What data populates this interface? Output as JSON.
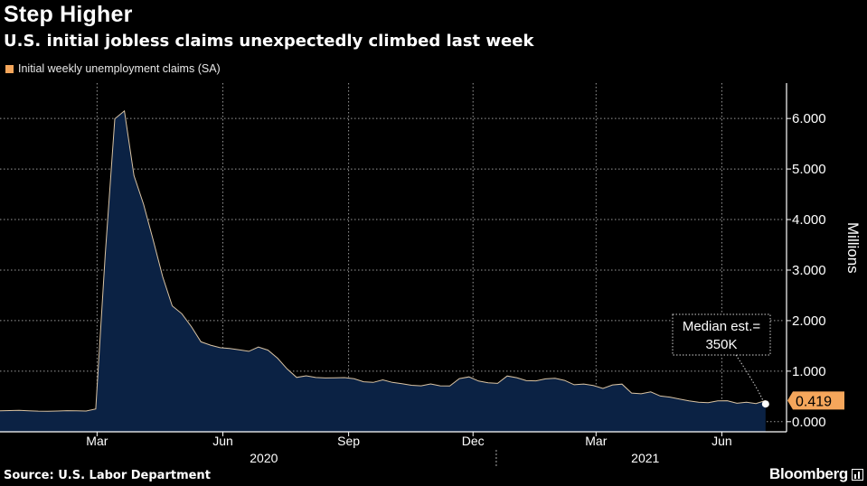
{
  "header": {
    "title": "Step Higher",
    "subtitle": "U.S. initial jobless claims unexpectedly climbed last week"
  },
  "legend": {
    "label": "Initial weekly unemployment claims (SA)",
    "color": "#f5a65b"
  },
  "annotation": {
    "line1": "Median est.=",
    "line2": "350K"
  },
  "last_value_label": "0.419",
  "footer": {
    "source": "Source: U.S. Labor Department",
    "brand": "Bloomberg"
  },
  "colors": {
    "background": "#000000",
    "area_fill": "#0b2244",
    "line": "#d9c3a3",
    "accent": "#f5a65b"
  },
  "chart_data": {
    "type": "area",
    "title": "Step Higher",
    "subtitle": "U.S. initial jobless claims unexpectedly climbed last week",
    "ylabel": "Millions",
    "ylim": [
      -0.2,
      6.7
    ],
    "yticks": [
      0,
      1,
      2,
      3,
      4,
      5,
      6
    ],
    "ytick_labels": [
      "0.000",
      "1.000",
      "2.000",
      "3.000",
      "4.000",
      "5.000",
      "6.000"
    ],
    "xlim": [
      "2020-01-04",
      "2021-07-31"
    ],
    "xticks": [
      {
        "date": "2020-03-15",
        "label": "Mar"
      },
      {
        "date": "2020-06-15",
        "label": "Jun"
      },
      {
        "date": "2020-09-15",
        "label": "Sep"
      },
      {
        "date": "2020-12-15",
        "label": "Dec"
      },
      {
        "date": "2021-03-15",
        "label": "Mar"
      },
      {
        "date": "2021-06-15",
        "label": "Jun"
      }
    ],
    "year_labels": [
      {
        "date": "2020-07-15",
        "label": "2020"
      },
      {
        "date": "2021-04-20",
        "label": "2021"
      }
    ],
    "year_divider": "2021-01-01",
    "grid": true,
    "legend_position": "top-left",
    "series": [
      {
        "name": "Initial weekly unemployment claims (SA)",
        "x": [
          "2020-01-04",
          "2020-01-11",
          "2020-01-18",
          "2020-01-25",
          "2020-02-01",
          "2020-02-08",
          "2020-02-15",
          "2020-02-22",
          "2020-02-29",
          "2020-03-07",
          "2020-03-14",
          "2020-03-21",
          "2020-03-28",
          "2020-04-04",
          "2020-04-11",
          "2020-04-18",
          "2020-04-25",
          "2020-05-02",
          "2020-05-09",
          "2020-05-16",
          "2020-05-23",
          "2020-05-30",
          "2020-06-06",
          "2020-06-13",
          "2020-06-20",
          "2020-06-27",
          "2020-07-04",
          "2020-07-11",
          "2020-07-18",
          "2020-07-25",
          "2020-08-01",
          "2020-08-08",
          "2020-08-15",
          "2020-08-22",
          "2020-08-29",
          "2020-09-05",
          "2020-09-12",
          "2020-09-19",
          "2020-09-26",
          "2020-10-03",
          "2020-10-10",
          "2020-10-17",
          "2020-10-24",
          "2020-10-31",
          "2020-11-07",
          "2020-11-14",
          "2020-11-21",
          "2020-11-28",
          "2020-12-05",
          "2020-12-12",
          "2020-12-19",
          "2020-12-26",
          "2021-01-02",
          "2021-01-09",
          "2021-01-16",
          "2021-01-23",
          "2021-01-30",
          "2021-02-06",
          "2021-02-13",
          "2021-02-20",
          "2021-02-27",
          "2021-03-06",
          "2021-03-13",
          "2021-03-20",
          "2021-03-27",
          "2021-04-03",
          "2021-04-10",
          "2021-04-17",
          "2021-04-24",
          "2021-05-01",
          "2021-05-08",
          "2021-05-15",
          "2021-05-22",
          "2021-05-29",
          "2021-06-05",
          "2021-06-12",
          "2021-06-19",
          "2021-06-26",
          "2021-07-03",
          "2021-07-10",
          "2021-07-17"
        ],
        "y": [
          0.214,
          0.22,
          0.223,
          0.217,
          0.21,
          0.207,
          0.212,
          0.219,
          0.217,
          0.211,
          0.252,
          3.307,
          5.994,
          6.149,
          4.87,
          4.302,
          3.596,
          2.866,
          2.292,
          2.137,
          1.88,
          1.581,
          1.514,
          1.464,
          1.45,
          1.424,
          1.393,
          1.477,
          1.416,
          1.256,
          1.045,
          0.877,
          0.909,
          0.874,
          0.866,
          0.867,
          0.872,
          0.849,
          0.79,
          0.777,
          0.828,
          0.777,
          0.753,
          0.721,
          0.709,
          0.747,
          0.71,
          0.707,
          0.853,
          0.886,
          0.804,
          0.77,
          0.758,
          0.904,
          0.87,
          0.812,
          0.809,
          0.848,
          0.859,
          0.817,
          0.731,
          0.745,
          0.716,
          0.658,
          0.728,
          0.744,
          0.567,
          0.553,
          0.59,
          0.507,
          0.487,
          0.447,
          0.414,
          0.385,
          0.376,
          0.412,
          0.415,
          0.364,
          0.386,
          0.36,
          0.419
        ]
      }
    ],
    "annotations": [
      {
        "text": "Median est.= 350K",
        "target_date": "2021-07-17",
        "target_value": 0.35
      }
    ],
    "last_value": {
      "date": "2021-07-17",
      "value": 0.419,
      "label": "0.419"
    }
  }
}
